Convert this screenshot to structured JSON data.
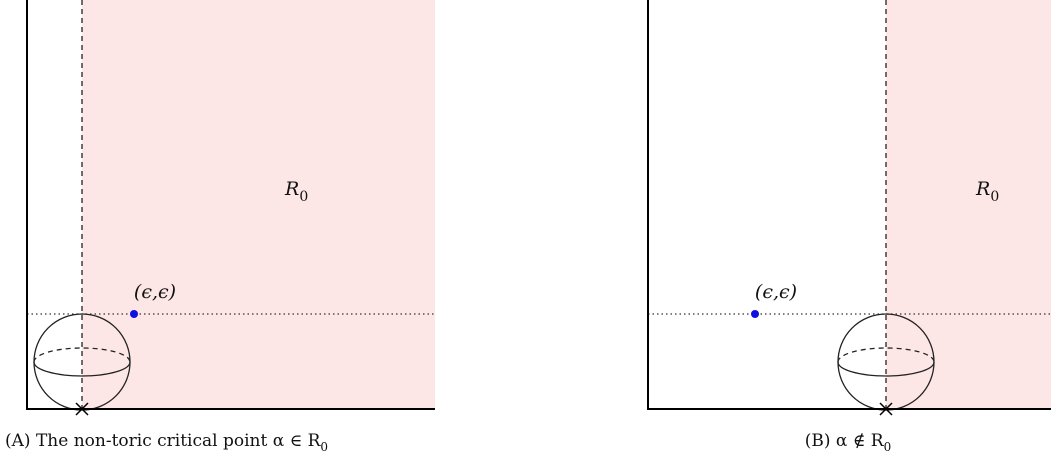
{
  "panels": [
    {
      "region_label": {
        "main": "R",
        "sub": "0"
      },
      "point_label": "(ϵ,ϵ)",
      "caption": {
        "tag": "(A)",
        "text": "The non-toric critical point α ∈ R",
        "sub": "0"
      }
    },
    {
      "region_label": {
        "main": "R",
        "sub": "0"
      },
      "point_label": "(ϵ,ϵ)",
      "caption": {
        "tag": "(B)",
        "text": "α ∉ R",
        "sub": "0"
      }
    }
  ]
}
